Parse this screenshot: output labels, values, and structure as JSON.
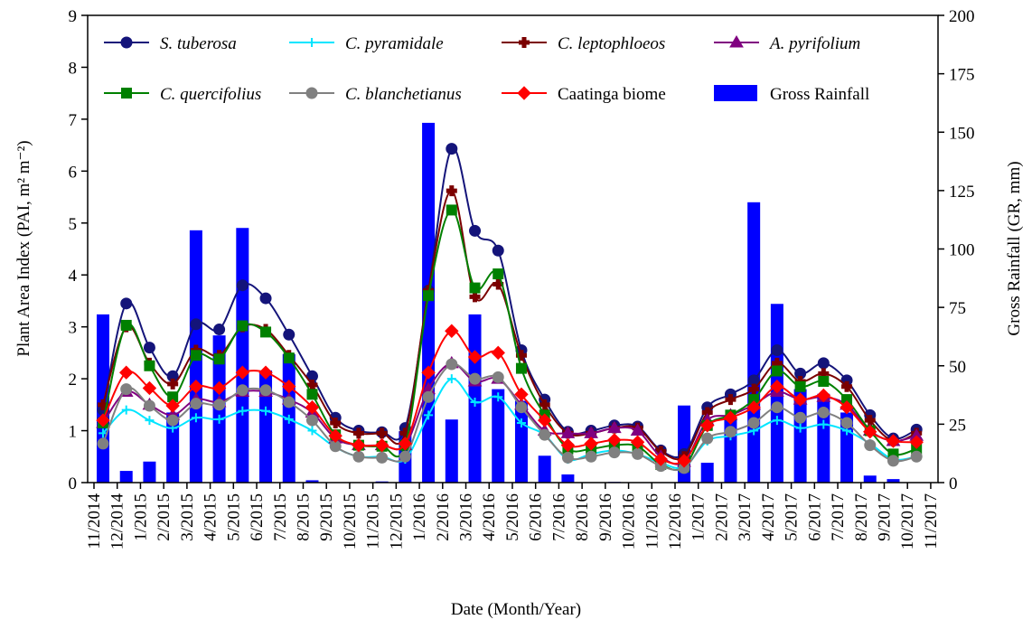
{
  "chart_data": {
    "type": "line",
    "xlabel": "Date (Month/Year)",
    "ylabel": "Plant Area Index (PAI, m² m⁻²)",
    "y2label": "Gross Rainfall (GR, mm)",
    "categories": [
      "11/2014",
      "12/2014",
      "1/2015",
      "2/2015",
      "3/2015",
      "4/2015",
      "5/2015",
      "6/2015",
      "7/2015",
      "8/2015",
      "9/2015",
      "10/2015",
      "11/2015",
      "12/2015",
      "1/2016",
      "2/2016",
      "3/2016",
      "4/2016",
      "5/2016",
      "6/2016",
      "7/2016",
      "8/2016",
      "9/2016",
      "10/2016",
      "11/2016",
      "12/2016",
      "1/2017",
      "2/2017",
      "3/2017",
      "4/2017",
      "5/2017",
      "6/2017",
      "7/2017",
      "8/2017",
      "9/2017",
      "10/2017",
      "11/2017"
    ],
    "ylim": [
      0,
      9
    ],
    "yticks": [
      0,
      1,
      2,
      3,
      4,
      5,
      6,
      7,
      8,
      9
    ],
    "y2lim": [
      0,
      200
    ],
    "y2ticks": [
      0,
      25,
      50,
      75,
      100,
      125,
      150,
      175,
      200
    ],
    "series": [
      {
        "name": "S. tuberosa",
        "color": "#14147a",
        "marker": "circle",
        "values": [
          1.4,
          3.45,
          2.6,
          2.05,
          3.05,
          2.95,
          3.8,
          3.55,
          2.85,
          2.05,
          1.25,
          1.0,
          0.97,
          1.05,
          3.7,
          6.43,
          4.85,
          4.47,
          2.55,
          1.6,
          0.98,
          1.0,
          1.1,
          1.08,
          0.62,
          0.55,
          1.45,
          1.7,
          1.97,
          2.55,
          2.1,
          2.3,
          1.97,
          1.3,
          0.85,
          1.02,
          null
        ]
      },
      {
        "name": "C. pyramidale",
        "color": "#00e5ff",
        "marker": "plus",
        "values": [
          0.95,
          1.4,
          1.2,
          1.05,
          1.25,
          1.22,
          1.38,
          1.38,
          1.22,
          1.0,
          0.68,
          0.5,
          0.5,
          0.45,
          1.3,
          2.0,
          1.55,
          1.65,
          1.15,
          0.92,
          0.45,
          0.55,
          0.62,
          0.55,
          0.38,
          0.3,
          0.8,
          0.9,
          1.0,
          1.2,
          1.05,
          1.12,
          1.0,
          0.75,
          0.45,
          0.5,
          null
        ]
      },
      {
        "name": "C. leptophloeos",
        "color": "#7b0000",
        "marker": "cross",
        "values": [
          1.5,
          3.0,
          2.3,
          1.9,
          2.55,
          2.45,
          3.0,
          2.95,
          2.45,
          1.88,
          1.15,
          0.95,
          0.95,
          0.95,
          3.7,
          5.62,
          3.58,
          3.82,
          2.45,
          1.5,
          0.95,
          0.95,
          1.05,
          1.05,
          0.6,
          0.5,
          1.35,
          1.6,
          1.8,
          2.3,
          1.95,
          2.1,
          1.85,
          1.2,
          0.8,
          0.95,
          null
        ]
      },
      {
        "name": "A. pyrifolium",
        "color": "#800080",
        "marker": "triangle",
        "values": [
          1.15,
          1.75,
          1.5,
          1.3,
          1.6,
          1.55,
          1.75,
          1.75,
          1.6,
          1.35,
          0.85,
          0.72,
          0.72,
          0.72,
          1.8,
          2.3,
          1.95,
          2.0,
          1.5,
          1.0,
          0.95,
          0.95,
          1.05,
          1.0,
          0.5,
          0.4,
          1.2,
          1.3,
          1.5,
          1.75,
          1.6,
          1.65,
          1.5,
          1.0,
          0.8,
          0.9,
          null
        ]
      },
      {
        "name": "C. quercifolius",
        "color": "#008000",
        "marker": "square",
        "values": [
          1.15,
          3.03,
          2.25,
          1.65,
          2.45,
          2.38,
          3.02,
          2.9,
          2.4,
          1.7,
          0.92,
          0.72,
          0.7,
          0.72,
          3.6,
          5.25,
          3.75,
          4.02,
          2.2,
          1.3,
          0.65,
          0.65,
          0.72,
          0.7,
          0.35,
          0.3,
          1.1,
          1.3,
          1.6,
          2.15,
          1.85,
          1.95,
          1.6,
          1.0,
          0.55,
          0.65,
          null
        ]
      },
      {
        "name": "C. blanchetianus",
        "color": "#808080",
        "marker": "circle",
        "values": [
          0.75,
          1.8,
          1.48,
          1.2,
          1.52,
          1.5,
          1.78,
          1.78,
          1.55,
          1.2,
          0.7,
          0.5,
          0.48,
          0.5,
          1.65,
          2.28,
          2.0,
          2.03,
          1.45,
          0.92,
          0.48,
          0.5,
          0.58,
          0.55,
          0.32,
          0.28,
          0.85,
          0.98,
          1.15,
          1.45,
          1.25,
          1.35,
          1.15,
          0.72,
          0.42,
          0.5,
          null
        ]
      },
      {
        "name": "Caatinga biome",
        "color": "#ff0000",
        "marker": "diamond",
        "values": [
          1.2,
          2.12,
          1.82,
          1.48,
          1.85,
          1.82,
          2.12,
          2.12,
          1.85,
          1.45,
          0.9,
          0.72,
          0.72,
          0.75,
          2.12,
          2.92,
          2.42,
          2.5,
          1.7,
          1.2,
          0.72,
          0.75,
          0.82,
          0.78,
          0.45,
          0.42,
          1.1,
          1.25,
          1.45,
          1.85,
          1.6,
          1.68,
          1.45,
          0.98,
          0.8,
          0.78,
          null
        ]
      },
      {
        "name": "Gross Rainfall",
        "color": "#0000ff",
        "type": "bar",
        "axis": "y2",
        "values": [
          72,
          5,
          9,
          30,
          108,
          63,
          109,
          48,
          55,
          1,
          0,
          0,
          0.5,
          22,
          154,
          27,
          72,
          40,
          35,
          11.5,
          3.5,
          0,
          0.3,
          0,
          0,
          33,
          8.5,
          28,
          120,
          76.5,
          40,
          38,
          30,
          3,
          1.5,
          0,
          null
        ]
      }
    ]
  }
}
